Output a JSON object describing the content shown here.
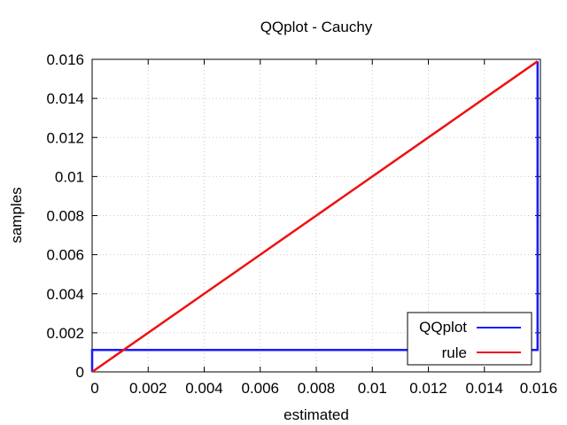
{
  "chart_data": {
    "type": "line",
    "title": "QQplot - Cauchy",
    "xlabel": "estimated",
    "ylabel": "samples",
    "xlim": [
      0,
      0.016
    ],
    "ylim": [
      0,
      0.016
    ],
    "xticks": [
      "0",
      "0.002",
      "0.004",
      "0.006",
      "0.008",
      "0.01",
      "0.012",
      "0.014",
      "0.016"
    ],
    "yticks": [
      "0",
      "0.002",
      "0.004",
      "0.006",
      "0.008",
      "0.01",
      "0.012",
      "0.014",
      "0.016"
    ],
    "tick_values": [
      0,
      0.002,
      0.004,
      0.006,
      0.008,
      0.01,
      0.012,
      0.014,
      0.016
    ],
    "grid": true,
    "legend_position": "bottom-right",
    "series": [
      {
        "name": "QQplot",
        "color": "#1a1aff",
        "x": [
          0,
          0,
          0.0159,
          0.0159,
          0.0159,
          0.0159,
          0.0159
        ],
        "y": [
          0,
          0.00112,
          0.00112,
          0.0105,
          0.0111,
          0.0113,
          0.0159
        ]
      },
      {
        "name": "rule",
        "color": "#ee1111",
        "x": [
          0,
          0.0159
        ],
        "y": [
          0,
          0.0159
        ]
      }
    ]
  }
}
